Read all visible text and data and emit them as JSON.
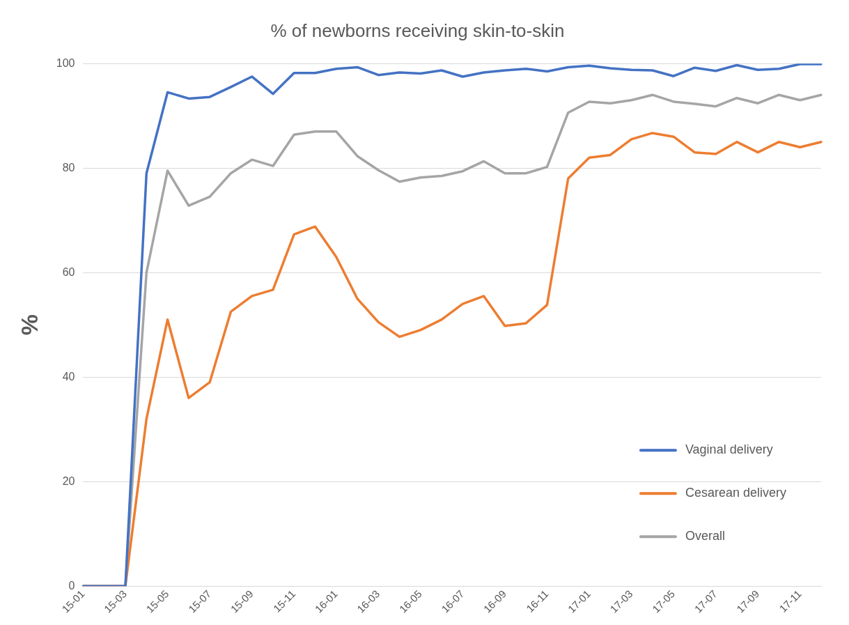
{
  "chart_data": {
    "type": "line",
    "title": "% of newborns receiving skin-to-skin",
    "ylabel": "%",
    "categories": [
      "15-01",
      null,
      "15-03",
      null,
      "15-05",
      null,
      "15-07",
      null,
      "15-09",
      null,
      "15-11",
      null,
      "16-01",
      null,
      "16-03",
      null,
      "16-05",
      null,
      "16-07",
      null,
      "16-09",
      null,
      "16-11",
      null,
      "17-01",
      null,
      "17-03",
      null,
      "17-05",
      null,
      "17-07",
      null,
      "17-09",
      null,
      "17-11",
      null
    ],
    "series": [
      {
        "name": "Vaginal delivery",
        "color": "#4472c4",
        "values": [
          0,
          0,
          0,
          79,
          94.5,
          93.3,
          93.6,
          95.5,
          97.5,
          94.2,
          98.2,
          98.2,
          99,
          99.3,
          97.8,
          98.3,
          98.1,
          98.7,
          97.5,
          98.3,
          98.7,
          99,
          98.5,
          99.3,
          99.6,
          99.1,
          98.8,
          98.7,
          97.6,
          99.2,
          98.6,
          99.7,
          98.8,
          99,
          99.9,
          99.9
        ]
      },
      {
        "name": "Cesarean delivery",
        "color": "#ed7d31",
        "values": [
          0,
          0,
          0,
          32,
          51,
          36,
          39,
          52.5,
          55.5,
          56.7,
          67.3,
          68.8,
          63,
          55,
          50.5,
          47.7,
          49,
          51,
          54,
          55.5,
          49.8,
          50.3,
          53.8,
          78,
          82,
          82.5,
          85.5,
          86.7,
          86,
          83,
          82.7,
          85,
          83,
          85,
          84,
          85
        ]
      },
      {
        "name": "Overall",
        "color": "#a5a5a5",
        "values": [
          0,
          0,
          0,
          60,
          79.5,
          72.8,
          74.5,
          79,
          81.6,
          80.4,
          86.4,
          87,
          87,
          82.3,
          79.6,
          77.4,
          78.2,
          78.5,
          79.4,
          81.3,
          79,
          79,
          80.2,
          90.6,
          92.7,
          92.4,
          93,
          94,
          92.7,
          92.3,
          91.8,
          93.4,
          92.4,
          94,
          93,
          94
        ]
      }
    ],
    "ylim": [
      0,
      100
    ],
    "yticks": [
      0,
      20,
      40,
      60,
      80,
      100
    ],
    "grid": "y",
    "legend": "bottom right",
    "marker": "none",
    "line_style": "solid"
  }
}
